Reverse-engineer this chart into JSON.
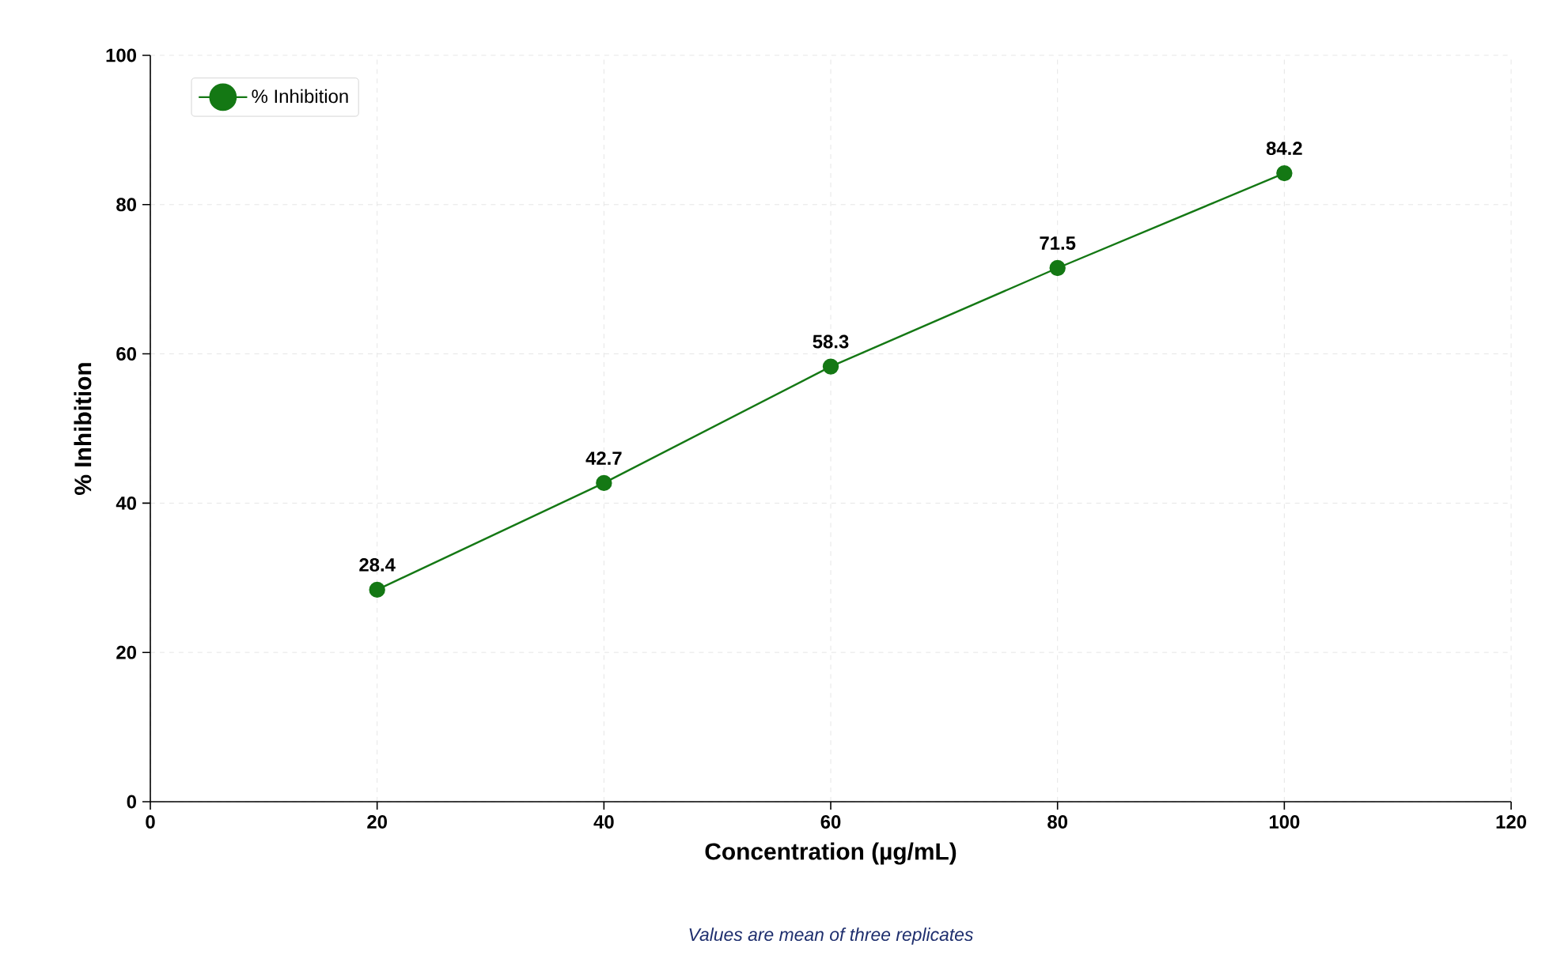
{
  "chart_data": {
    "type": "line",
    "xlabel": "Concentration (µg/mL)",
    "ylabel": "% Inhibition",
    "x": [
      20,
      40,
      60,
      80,
      100
    ],
    "series": [
      {
        "name": "% Inhibition",
        "color": "#147814",
        "values": [
          28.4,
          42.7,
          58.3,
          71.5,
          84.2
        ]
      }
    ],
    "xlim": [
      0,
      120
    ],
    "xticks": [
      0,
      20,
      40,
      60,
      80,
      100,
      120
    ],
    "ylim": [
      0,
      100
    ],
    "yticks": [
      0,
      20,
      40,
      60,
      80,
      100
    ],
    "grid": true,
    "legend": "top left",
    "marker": "circle",
    "line_style": "solid",
    "data_labels": true,
    "annotations": [
      "Values are mean of three replicates"
    ]
  }
}
